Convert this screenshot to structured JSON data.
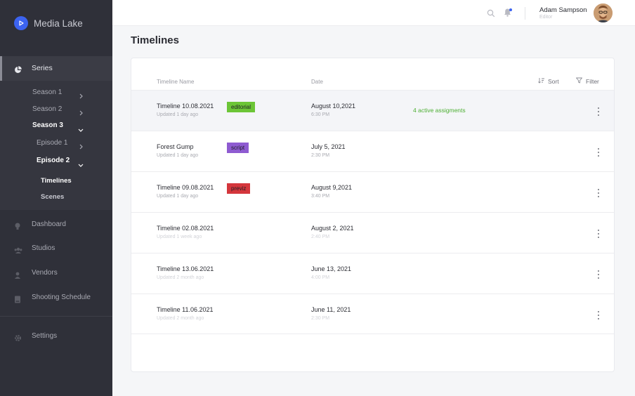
{
  "app": {
    "name": "Media Lake"
  },
  "sidebar": {
    "series": {
      "label": "Series"
    },
    "sub": [
      {
        "label": "Season 1"
      },
      {
        "label": "Season 2"
      },
      {
        "label": "Season 3"
      },
      {
        "label": "Episode 1"
      },
      {
        "label": "Episode 2"
      },
      {
        "label": "Timelines"
      },
      {
        "label": "Scenes"
      }
    ],
    "nav": [
      {
        "label": "Dashboard",
        "icon": "bulb-icon"
      },
      {
        "label": "Studios",
        "icon": "users-icon"
      },
      {
        "label": "Vendors",
        "icon": "user-icon"
      },
      {
        "label": "Shooting Schedule",
        "icon": "book-icon"
      },
      {
        "label": "Settings",
        "icon": "gear-icon"
      }
    ]
  },
  "header": {
    "user_name": "Adam Sampson",
    "user_role": "Editor"
  },
  "main": {
    "title": "Timelines",
    "columns": {
      "name": "Timeline Name",
      "date": "Date"
    },
    "sort_label": "Sort",
    "filter_label": "Filter",
    "rows": [
      {
        "name": "Timeline  10.08.2021",
        "updated": "Updated 1 day ago",
        "tag": "editorial",
        "tag_color": "#6cc537",
        "date": "August 10,2021",
        "time": "6:30 PM",
        "assign": "4 active assigments"
      },
      {
        "name": "Forest Gump",
        "updated": "Updated 1 day ago",
        "tag": "script",
        "tag_color": "#8e5bd1",
        "date": "July 5, 2021",
        "time": "2:30 PM",
        "assign": ""
      },
      {
        "name": "Timeline 09.08.2021",
        "updated": "Updated 1 day ago",
        "tag": "previz",
        "tag_color": "#d4363c",
        "date": "August 9,2021",
        "time": "3:40 PM",
        "assign": ""
      },
      {
        "name": "Timeline 02.08.2021",
        "updated": "Updated 1 week ago",
        "tag": "",
        "tag_color": "",
        "date": "August 2, 2021",
        "time": "2:40 PM",
        "assign": ""
      },
      {
        "name": "Timeline 13.06.2021",
        "updated": "Updated 2 month  ago",
        "tag": "",
        "tag_color": "",
        "date": "June 13, 2021",
        "time": "4:00 PM",
        "assign": ""
      },
      {
        "name": "Timeline 11.06.2021",
        "updated": "Updated 2 month ago",
        "tag": "",
        "tag_color": "",
        "date": "June  11, 2021",
        "time": "2:30 PM",
        "assign": ""
      }
    ]
  },
  "colors": {
    "accent": "#3c63f0",
    "sidebar": "#2f3039",
    "success": "#4caf32"
  }
}
